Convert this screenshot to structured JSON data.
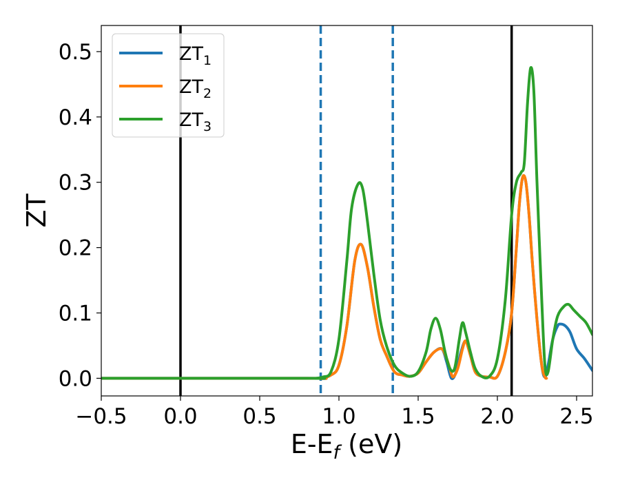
{
  "chart_data": {
    "type": "line",
    "title": "",
    "xlabel": "E-E",
    "xlabel_sub": "f",
    "xlabel_unit": " (eV)",
    "ylabel": "ZT",
    "xlim": [
      -0.5,
      2.6
    ],
    "ylim": [
      -0.027,
      0.54
    ],
    "x_ticks": [
      -0.5,
      0.0,
      0.5,
      1.0,
      1.5,
      2.0,
      2.5
    ],
    "x_tick_labels": [
      "−0.5",
      "0.0",
      "0.5",
      "1.0",
      "1.5",
      "2.0",
      "2.5"
    ],
    "y_ticks": [
      0.0,
      0.1,
      0.2,
      0.3,
      0.4,
      0.5
    ],
    "y_tick_labels": [
      "0.0",
      "0.1",
      "0.2",
      "0.3",
      "0.4",
      "0.5"
    ],
    "grid": false,
    "legend": "upper-left",
    "vlines": [
      {
        "x": 0.0,
        "style": "solid",
        "color": "#000000"
      },
      {
        "x": 2.09,
        "style": "solid",
        "color": "#000000"
      },
      {
        "x": 0.885,
        "style": "dashed",
        "color": "#1f77b4"
      },
      {
        "x": 1.34,
        "style": "dashed",
        "color": "#1f77b4"
      }
    ],
    "series": [
      {
        "name": "ZT",
        "name_sub": "1",
        "color": "#1f77b4",
        "x": [
          -0.5,
          0.8,
          0.88,
          0.95,
          1.0,
          1.05,
          1.1,
          1.14,
          1.18,
          1.22,
          1.26,
          1.3,
          1.35,
          1.4,
          1.45,
          1.5,
          1.55,
          1.6,
          1.65,
          1.68,
          1.71,
          1.74,
          1.77,
          1.8,
          1.83,
          1.86,
          1.9,
          1.95,
          2.0,
          2.05,
          2.09,
          2.12,
          2.14,
          2.16,
          2.18,
          2.2,
          2.22,
          2.25,
          2.28,
          2.3,
          2.32,
          2.35,
          2.38,
          2.4,
          2.43,
          2.46,
          2.5,
          2.55,
          2.6
        ],
        "y": [
          0.0,
          0.0,
          0.0,
          0.005,
          0.02,
          0.08,
          0.18,
          0.205,
          0.17,
          0.11,
          0.06,
          0.035,
          0.01,
          0.005,
          0.003,
          0.008,
          0.025,
          0.04,
          0.045,
          0.025,
          0.0,
          0.01,
          0.04,
          0.057,
          0.035,
          0.01,
          0.003,
          0.002,
          0.003,
          0.04,
          0.1,
          0.2,
          0.27,
          0.308,
          0.3,
          0.25,
          0.18,
          0.09,
          0.02,
          0.002,
          0.02,
          0.06,
          0.08,
          0.083,
          0.08,
          0.07,
          0.045,
          0.03,
          0.012
        ]
      },
      {
        "name": "ZT",
        "name_sub": "2",
        "color": "#ff7f0e",
        "x": [
          -0.5,
          0.8,
          0.88,
          0.95,
          1.0,
          1.05,
          1.1,
          1.14,
          1.18,
          1.22,
          1.26,
          1.3,
          1.35,
          1.4,
          1.45,
          1.5,
          1.55,
          1.6,
          1.65,
          1.68,
          1.7,
          1.72,
          1.75,
          1.78,
          1.8,
          1.83,
          1.86,
          1.9,
          1.95,
          2.0,
          2.05,
          2.09,
          2.12,
          2.14,
          2.16,
          2.18,
          2.2,
          2.22,
          2.25,
          2.28,
          2.3,
          2.31
        ],
        "y": [
          0.0,
          0.0,
          0.0,
          0.005,
          0.02,
          0.08,
          0.18,
          0.205,
          0.17,
          0.11,
          0.06,
          0.035,
          0.01,
          0.005,
          0.003,
          0.008,
          0.025,
          0.04,
          0.045,
          0.03,
          0.015,
          0.002,
          0.015,
          0.045,
          0.057,
          0.035,
          0.01,
          0.003,
          0.002,
          0.003,
          0.04,
          0.1,
          0.2,
          0.27,
          0.308,
          0.3,
          0.25,
          0.18,
          0.09,
          0.02,
          0.002,
          0.0
        ]
      },
      {
        "name": "ZT",
        "name_sub": "3",
        "color": "#2ca02c",
        "x": [
          -0.5,
          0.8,
          0.85,
          0.9,
          0.95,
          1.0,
          1.05,
          1.08,
          1.12,
          1.15,
          1.18,
          1.22,
          1.26,
          1.3,
          1.35,
          1.4,
          1.45,
          1.5,
          1.55,
          1.58,
          1.61,
          1.64,
          1.67,
          1.7,
          1.73,
          1.76,
          1.78,
          1.8,
          1.83,
          1.86,
          1.9,
          1.95,
          2.0,
          2.05,
          2.09,
          2.12,
          2.15,
          2.17,
          2.19,
          2.21,
          2.23,
          2.25,
          2.28,
          2.3,
          2.32,
          2.35,
          2.38,
          2.42,
          2.45,
          2.48,
          2.52,
          2.56,
          2.6
        ],
        "y": [
          0.0,
          0.0,
          0.0,
          0.002,
          0.01,
          0.06,
          0.18,
          0.26,
          0.297,
          0.29,
          0.24,
          0.16,
          0.09,
          0.05,
          0.02,
          0.008,
          0.003,
          0.01,
          0.04,
          0.075,
          0.092,
          0.075,
          0.04,
          0.015,
          0.015,
          0.06,
          0.085,
          0.07,
          0.04,
          0.015,
          0.003,
          0.003,
          0.03,
          0.12,
          0.25,
          0.3,
          0.315,
          0.33,
          0.42,
          0.475,
          0.44,
          0.3,
          0.12,
          0.02,
          0.01,
          0.06,
          0.095,
          0.11,
          0.113,
          0.105,
          0.095,
          0.085,
          0.067
        ]
      }
    ]
  }
}
